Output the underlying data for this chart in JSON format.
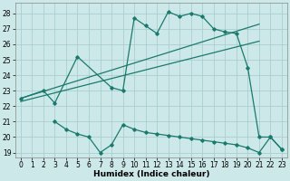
{
  "bg_color": "#cde8e8",
  "line_color": "#1a7a6e",
  "grid_color": "#aacece",
  "xlabel": "Humidex (Indice chaleur)",
  "xlim": [
    -0.5,
    23.5
  ],
  "ylim": [
    18.7,
    28.7
  ],
  "yticks": [
    19,
    20,
    21,
    22,
    23,
    24,
    25,
    26,
    27,
    28
  ],
  "xticks": [
    0,
    1,
    2,
    3,
    4,
    5,
    6,
    7,
    8,
    9,
    10,
    11,
    12,
    13,
    14,
    15,
    16,
    17,
    18,
    19,
    20,
    21,
    22,
    23
  ],
  "curve1_x": [
    0,
    2,
    3,
    5,
    8,
    9,
    10,
    11,
    12,
    13,
    14,
    15,
    16,
    17,
    18,
    19,
    20,
    21,
    22,
    23
  ],
  "curve1_y": [
    22.5,
    23.0,
    22.2,
    25.2,
    23.2,
    23.0,
    27.7,
    27.2,
    26.7,
    28.1,
    27.8,
    28.0,
    27.8,
    27.0,
    26.8,
    26.7,
    24.5,
    20.0,
    20.0,
    19.2
  ],
  "line1_x": [
    0,
    21
  ],
  "line1_y": [
    22.5,
    27.3
  ],
  "line2_x": [
    0,
    21
  ],
  "line2_y": [
    22.3,
    26.2
  ],
  "curve2_x": [
    3,
    4,
    5,
    6,
    7,
    8,
    9,
    10,
    11,
    12,
    13,
    14,
    15,
    16,
    17,
    18,
    19,
    20,
    21,
    22,
    23
  ],
  "curve2_y": [
    21.0,
    20.5,
    20.2,
    20.0,
    19.0,
    19.5,
    20.8,
    20.5,
    20.3,
    20.2,
    20.1,
    20.0,
    19.9,
    19.8,
    19.7,
    19.6,
    19.5,
    19.3,
    19.0,
    20.0,
    19.2
  ]
}
